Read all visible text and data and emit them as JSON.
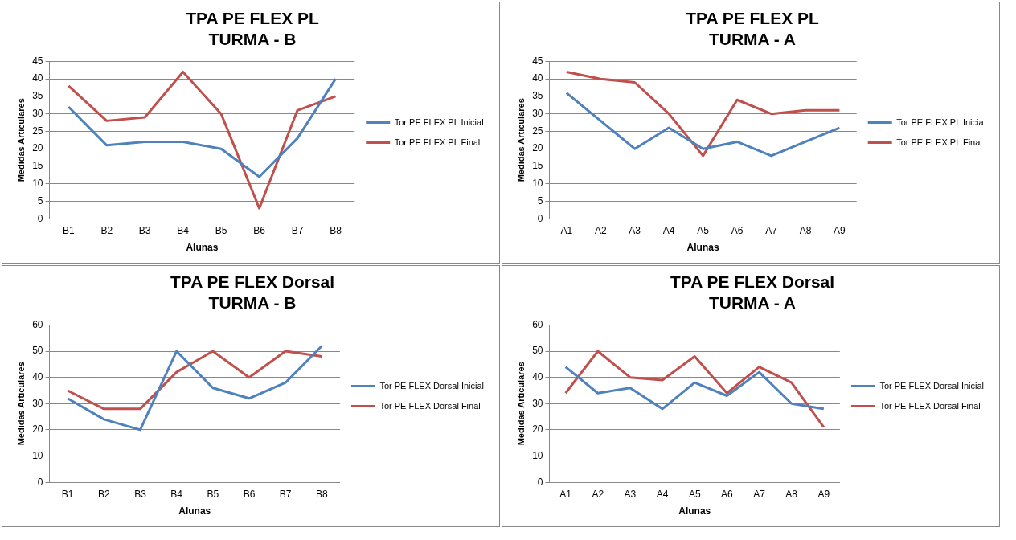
{
  "chart_data": [
    {
      "type": "line",
      "title": "TPA PE FLEX PL",
      "subtitle": "TURMA - B",
      "xlabel": "Alunas",
      "ylabel": "Medidas Articulares",
      "categories": [
        "B1",
        "B2",
        "B3",
        "B4",
        "B5",
        "B6",
        "B7",
        "B8"
      ],
      "series": [
        {
          "name": "Tor PE FLEX PL Inicial",
          "color": "#4f81bd",
          "values": [
            32,
            21,
            22,
            22,
            20,
            12,
            23,
            40
          ]
        },
        {
          "name": "Tor PE FLEX PL Final",
          "color": "#c0504d",
          "values": [
            38,
            28,
            29,
            42,
            30,
            3,
            31,
            35
          ]
        }
      ],
      "ylim": [
        0,
        45
      ],
      "yticks": [
        0,
        5,
        10,
        15,
        20,
        25,
        30,
        35,
        40,
        45
      ],
      "grid": "y",
      "legend": "right",
      "marker": "none"
    },
    {
      "type": "line",
      "title": "TPA PE FLEX PL",
      "subtitle": "TURMA - A",
      "xlabel": "Alunas",
      "ylabel": "Medidas Articulares",
      "categories": [
        "A1",
        "A2",
        "A3",
        "A4",
        "A5",
        "A6",
        "A7",
        "A8",
        "A9"
      ],
      "series": [
        {
          "name": "Tor PE FLEX PL Inicia",
          "color": "#4f81bd",
          "values": [
            36,
            28,
            20,
            26,
            20,
            22,
            18,
            22,
            26
          ]
        },
        {
          "name": "Tor PE FLEX PL Final",
          "color": "#c0504d",
          "values": [
            42,
            40,
            39,
            30,
            18,
            34,
            30,
            31,
            31
          ]
        }
      ],
      "ylim": [
        0,
        45
      ],
      "yticks": [
        0,
        5,
        10,
        15,
        20,
        25,
        30,
        35,
        40,
        45
      ],
      "grid": "y",
      "legend": "right",
      "marker": "none"
    },
    {
      "type": "line",
      "title": "TPA PE FLEX Dorsal",
      "subtitle": "TURMA - B",
      "xlabel": "Alunas",
      "ylabel": "Medidas Articulares",
      "categories": [
        "B1",
        "B2",
        "B3",
        "B4",
        "B5",
        "B6",
        "B7",
        "B8"
      ],
      "series": [
        {
          "name": "Tor PE FLEX Dorsal Inicial",
          "color": "#4f81bd",
          "values": [
            32,
            24,
            20,
            50,
            36,
            32,
            38,
            52
          ]
        },
        {
          "name": "Tor PE FLEX Dorsal Final",
          "color": "#c0504d",
          "values": [
            35,
            28,
            28,
            42,
            50,
            40,
            50,
            48
          ]
        }
      ],
      "ylim": [
        0,
        60
      ],
      "yticks": [
        0,
        10,
        20,
        30,
        40,
        50,
        60
      ],
      "grid": "y",
      "legend": "right",
      "marker": "none"
    },
    {
      "type": "line",
      "title": "TPA PE FLEX Dorsal",
      "subtitle": "TURMA - A",
      "xlabel": "Alunas",
      "ylabel": "Medidas Articulares",
      "categories": [
        "A1",
        "A2",
        "A3",
        "A4",
        "A5",
        "A6",
        "A7",
        "A8",
        "A9"
      ],
      "series": [
        {
          "name": "Tor PE FLEX Dorsal Inicial",
          "color": "#4f81bd",
          "values": [
            44,
            34,
            36,
            28,
            38,
            33,
            42,
            30,
            28
          ]
        },
        {
          "name": "Tor PE FLEX Dorsal Final",
          "color": "#c0504d",
          "values": [
            34,
            50,
            40,
            39,
            48,
            34,
            44,
            38,
            21
          ]
        }
      ],
      "ylim": [
        0,
        60
      ],
      "yticks": [
        0,
        10,
        20,
        30,
        40,
        50,
        60
      ],
      "grid": "y",
      "legend": "right",
      "marker": "none"
    }
  ]
}
